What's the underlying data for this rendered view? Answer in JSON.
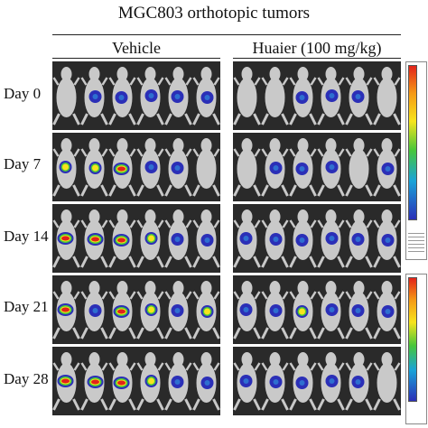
{
  "title": "MGC803 orthotopic tumors",
  "groups": [
    {
      "label": "Vehicle"
    },
    {
      "label": "Huaier (100 mg/kg)"
    }
  ],
  "rows": [
    {
      "label": "Day 0"
    },
    {
      "label": "Day 7"
    },
    {
      "label": "Day 14"
    },
    {
      "label": "Day 21"
    },
    {
      "label": "Day 28"
    }
  ],
  "colors": {
    "panel_background": "#2a2a2a",
    "mouse_body": "#c9c9c9",
    "signal_high": "#e2231a",
    "signal_mid": "#f7e41c",
    "signal_low_green": "#47c63a",
    "signal_low_blue": "#2b2fb7"
  },
  "legends": [
    {
      "name": "colorbar-top"
    },
    {
      "name": "colorbar-bottom"
    }
  ]
}
